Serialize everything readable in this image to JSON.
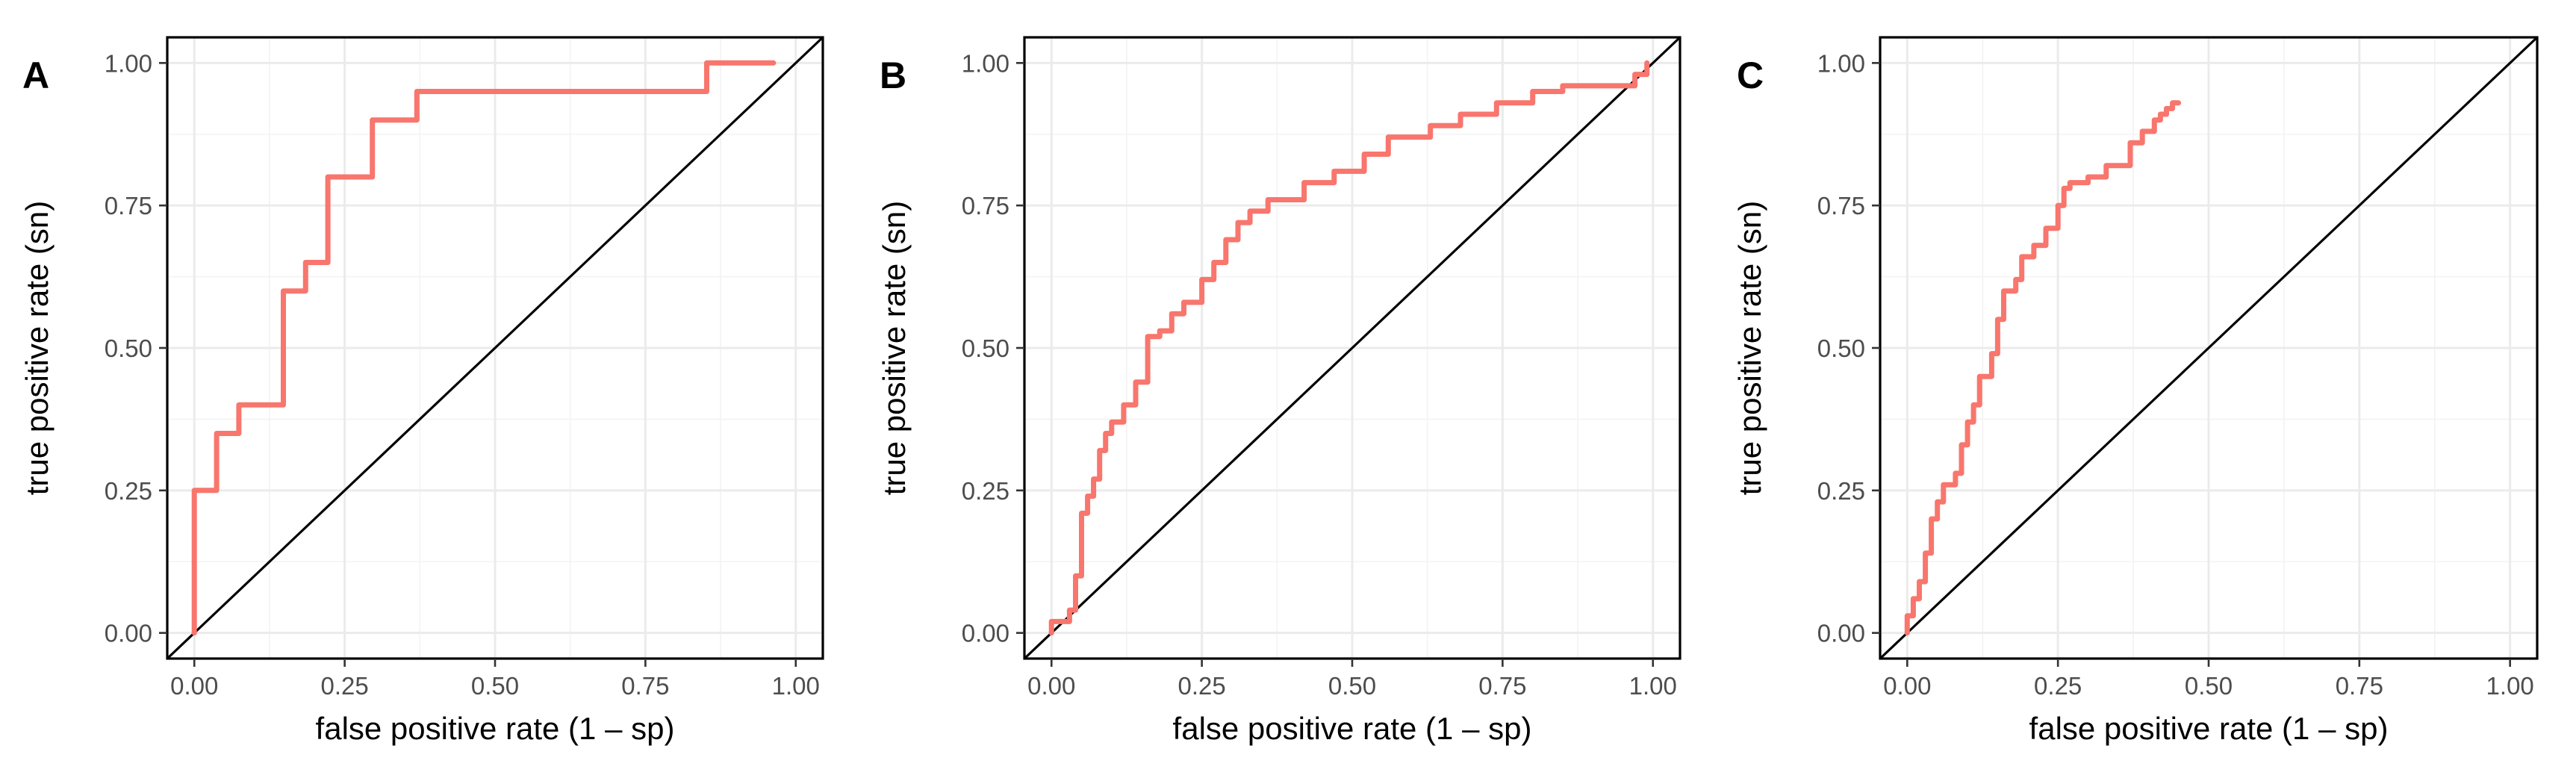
{
  "colors": {
    "roc": "#F8766D",
    "reference": "#000000"
  },
  "chart_data": [
    {
      "type": "line",
      "panel_label": "A",
      "xlabel": "false positive rate (1 – sp)",
      "ylabel": "true positive rate (sn)",
      "xlim": [
        0,
        1
      ],
      "ylim": [
        0,
        1
      ],
      "x_ticks": [
        "0.00",
        "0.25",
        "0.50",
        "0.75",
        "1.00"
      ],
      "y_ticks": [
        "0.00",
        "0.25",
        "0.50",
        "0.75",
        "1.00"
      ],
      "grid": true,
      "reference_line": [
        [
          0,
          0
        ],
        [
          1,
          1
        ]
      ],
      "series": [
        {
          "x": [
            0,
            0,
            0.037,
            0.037,
            0.074,
            0.074,
            0.148,
            0.148,
            0.185,
            0.185,
            0.222,
            0.222,
            0.296,
            0.296,
            0.37,
            0.37,
            0.852,
            0.852,
            0.963
          ],
          "y": [
            0,
            0.25,
            0.25,
            0.35,
            0.35,
            0.4,
            0.4,
            0.6,
            0.6,
            0.65,
            0.65,
            0.8,
            0.8,
            0.9,
            0.9,
            0.95,
            0.95,
            1.0,
            1.0
          ]
        }
      ]
    },
    {
      "type": "line",
      "panel_label": "B",
      "xlabel": "false positive rate (1 – sp)",
      "ylabel": "true positive rate (sn)",
      "xlim": [
        0,
        1
      ],
      "ylim": [
        0,
        1
      ],
      "x_ticks": [
        "0.00",
        "0.25",
        "0.50",
        "0.75",
        "1.00"
      ],
      "y_ticks": [
        "0.00",
        "0.25",
        "0.50",
        "0.75",
        "1.00"
      ],
      "grid": true,
      "reference_line": [
        [
          0,
          0
        ],
        [
          1,
          1
        ]
      ],
      "series": [
        {
          "x": [
            0,
            0,
            0.03,
            0.03,
            0.04,
            0.04,
            0.05,
            0.05,
            0.06,
            0.06,
            0.07,
            0.07,
            0.08,
            0.08,
            0.09,
            0.09,
            0.1,
            0.1,
            0.12,
            0.12,
            0.14,
            0.14,
            0.16,
            0.16,
            0.18,
            0.18,
            0.2,
            0.2,
            0.22,
            0.22,
            0.25,
            0.25,
            0.27,
            0.27,
            0.29,
            0.29,
            0.31,
            0.31,
            0.33,
            0.33,
            0.36,
            0.36,
            0.42,
            0.42,
            0.47,
            0.47,
            0.52,
            0.52,
            0.56,
            0.56,
            0.63,
            0.63,
            0.68,
            0.68,
            0.74,
            0.74,
            0.8,
            0.8,
            0.85,
            0.85,
            0.97,
            0.97,
            0.99,
            0.99
          ],
          "y": [
            0,
            0.02,
            0.02,
            0.04,
            0.04,
            0.1,
            0.1,
            0.21,
            0.21,
            0.24,
            0.24,
            0.27,
            0.27,
            0.32,
            0.32,
            0.35,
            0.35,
            0.37,
            0.37,
            0.4,
            0.4,
            0.44,
            0.44,
            0.52,
            0.52,
            0.53,
            0.53,
            0.56,
            0.56,
            0.58,
            0.58,
            0.62,
            0.62,
            0.65,
            0.65,
            0.69,
            0.69,
            0.72,
            0.72,
            0.74,
            0.74,
            0.76,
            0.76,
            0.79,
            0.79,
            0.81,
            0.81,
            0.84,
            0.84,
            0.87,
            0.87,
            0.89,
            0.89,
            0.91,
            0.91,
            0.93,
            0.93,
            0.95,
            0.95,
            0.96,
            0.96,
            0.98,
            0.98,
            1.0
          ]
        }
      ]
    },
    {
      "type": "line",
      "panel_label": "C",
      "xlabel": "false positive rate (1 – sp)",
      "ylabel": "true positive rate (sn)",
      "xlim": [
        0,
        1
      ],
      "ylim": [
        0,
        1
      ],
      "x_ticks": [
        "0.00",
        "0.25",
        "0.50",
        "0.75",
        "1.00"
      ],
      "y_ticks": [
        "0.00",
        "0.25",
        "0.50",
        "0.75",
        "1.00"
      ],
      "grid": true,
      "reference_line": [
        [
          0,
          0
        ],
        [
          1,
          1
        ]
      ],
      "series": [
        {
          "x": [
            0,
            0,
            0.01,
            0.01,
            0.02,
            0.02,
            0.03,
            0.03,
            0.04,
            0.04,
            0.05,
            0.05,
            0.06,
            0.06,
            0.08,
            0.08,
            0.09,
            0.09,
            0.1,
            0.1,
            0.11,
            0.11,
            0.12,
            0.12,
            0.14,
            0.14,
            0.15,
            0.15,
            0.16,
            0.16,
            0.18,
            0.18,
            0.19,
            0.19,
            0.21,
            0.21,
            0.23,
            0.23,
            0.25,
            0.25,
            0.26,
            0.26,
            0.27,
            0.27,
            0.3,
            0.3,
            0.33,
            0.33,
            0.37,
            0.37,
            0.39,
            0.39,
            0.41,
            0.41,
            0.42,
            0.42,
            0.43,
            0.43,
            0.44,
            0.44,
            0.45
          ],
          "y": [
            0,
            0.03,
            0.03,
            0.06,
            0.06,
            0.09,
            0.09,
            0.14,
            0.14,
            0.2,
            0.2,
            0.23,
            0.23,
            0.26,
            0.26,
            0.28,
            0.28,
            0.33,
            0.33,
            0.37,
            0.37,
            0.4,
            0.4,
            0.45,
            0.45,
            0.49,
            0.49,
            0.55,
            0.55,
            0.6,
            0.6,
            0.62,
            0.62,
            0.66,
            0.66,
            0.68,
            0.68,
            0.71,
            0.71,
            0.75,
            0.75,
            0.78,
            0.78,
            0.79,
            0.79,
            0.8,
            0.8,
            0.82,
            0.82,
            0.86,
            0.86,
            0.88,
            0.88,
            0.9,
            0.9,
            0.91,
            0.91,
            0.92,
            0.92,
            0.93,
            0.93
          ]
        }
      ]
    }
  ]
}
